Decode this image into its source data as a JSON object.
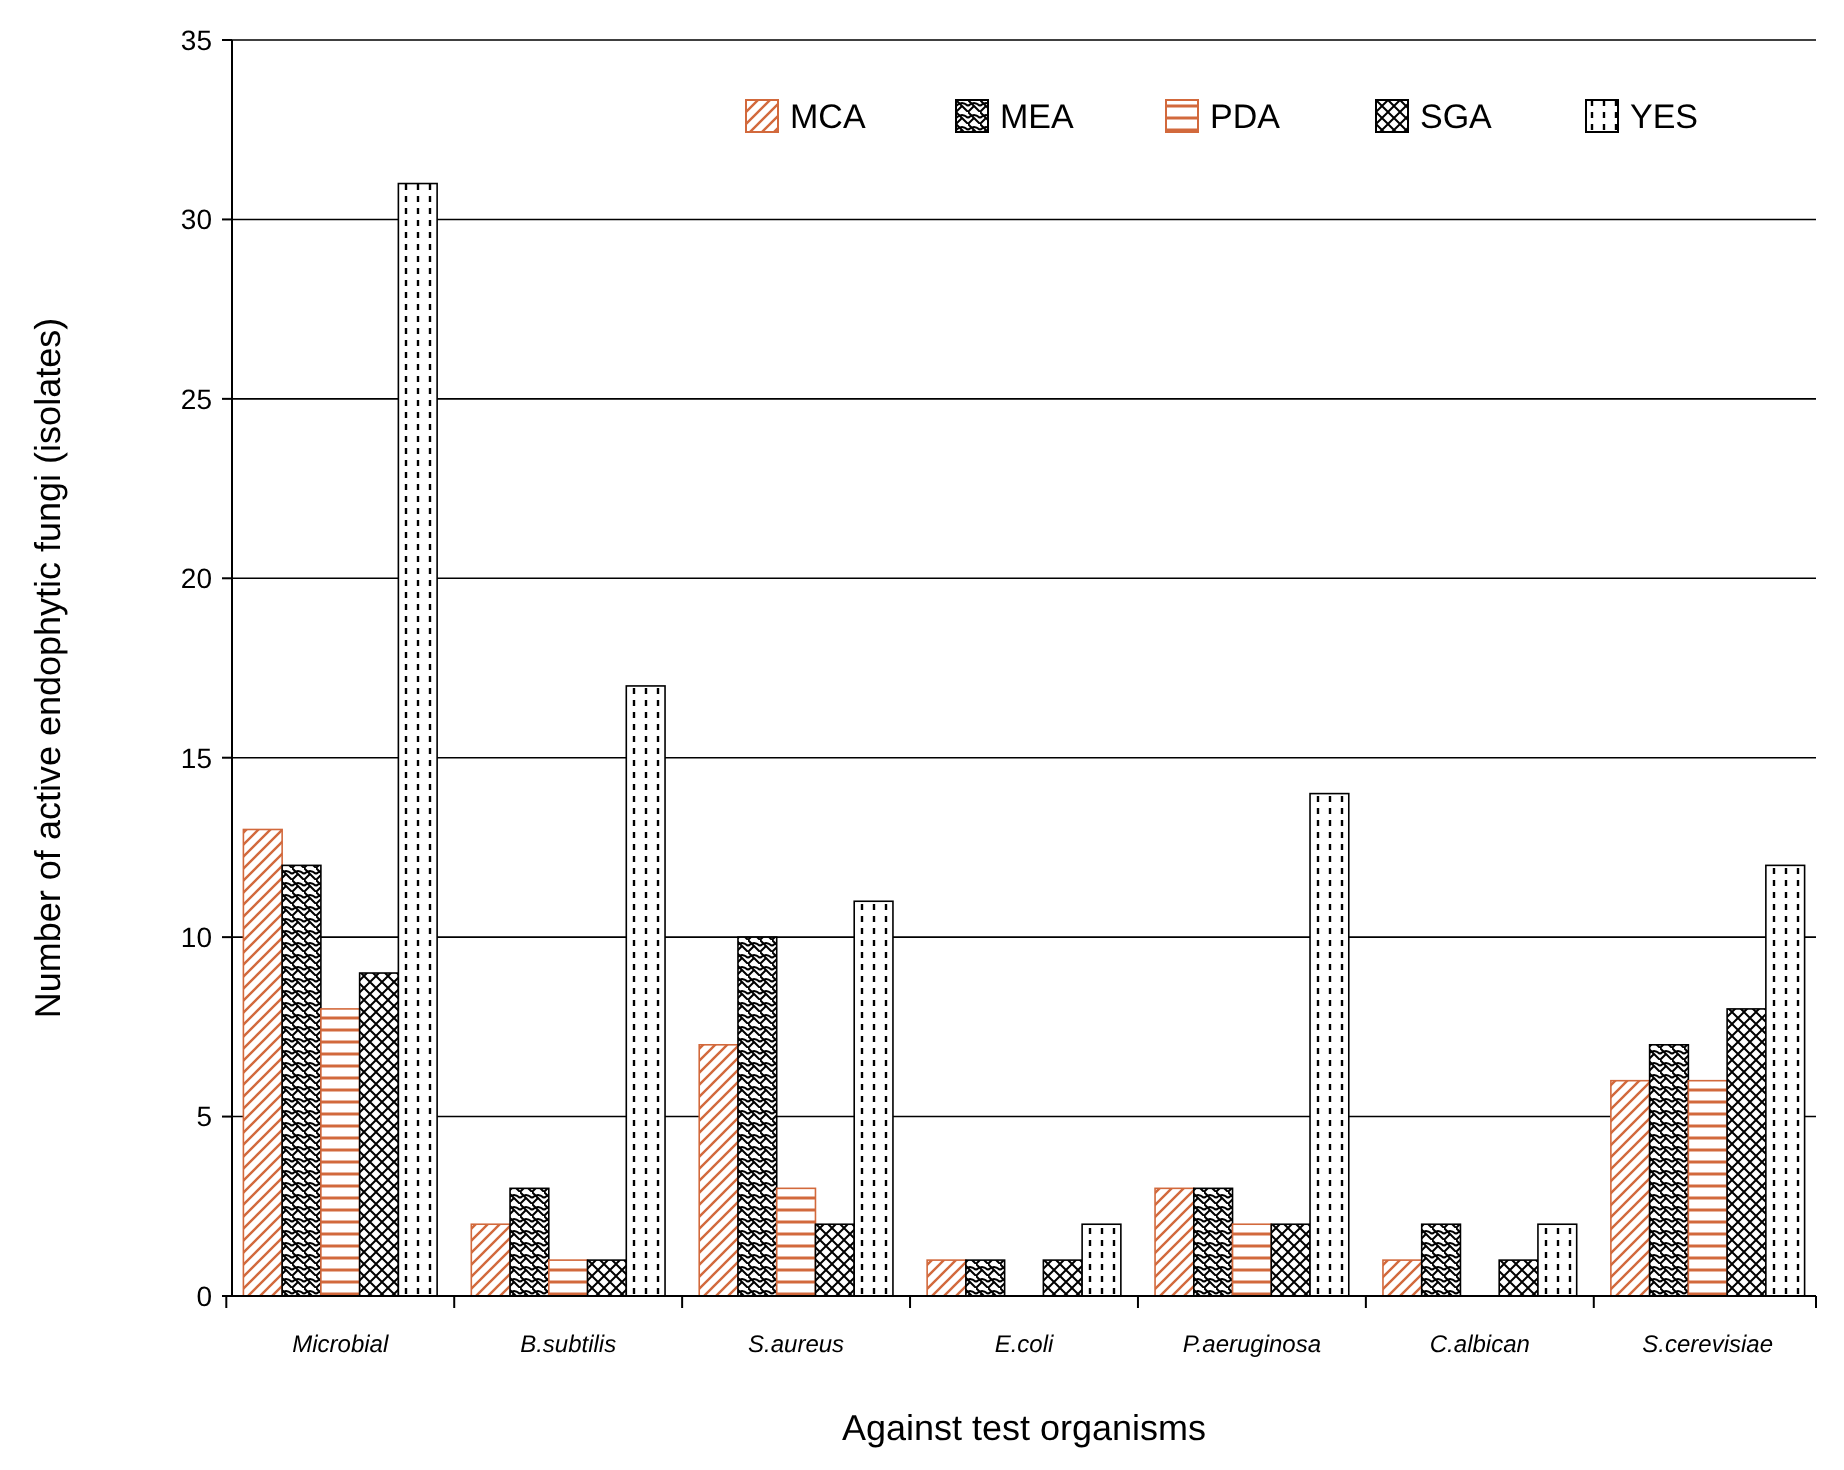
{
  "chart_data": {
    "type": "bar",
    "xlabel": "Against test organisms",
    "ylabel": "Number of active endophytic fungi (isolates)",
    "categories": [
      "Microbial",
      "B.subtilis",
      "S.aureus",
      "E.coli",
      "P.aeruginosa",
      "C.albican",
      "S.cerevisiae"
    ],
    "series": [
      {
        "name": "MCA",
        "color": "#d2693c",
        "values": [
          13,
          2,
          7,
          1,
          3,
          1,
          6
        ]
      },
      {
        "name": "MEA",
        "color": "#000000",
        "values": [
          12,
          3,
          10,
          1,
          3,
          2,
          7
        ]
      },
      {
        "name": "PDA",
        "color": "#d2693c",
        "values": [
          8,
          1,
          3,
          0,
          2,
          0,
          6
        ]
      },
      {
        "name": "SGA",
        "color": "#000000",
        "values": [
          9,
          1,
          2,
          1,
          2,
          1,
          8
        ]
      },
      {
        "name": "YES",
        "color": "#000000",
        "values": [
          31,
          17,
          11,
          2,
          14,
          2,
          12
        ]
      }
    ],
    "ylim": [
      0,
      35
    ],
    "yticks": [
      0,
      5,
      10,
      15,
      20,
      25,
      30,
      35
    ],
    "grid": "y",
    "legend": "top right"
  }
}
